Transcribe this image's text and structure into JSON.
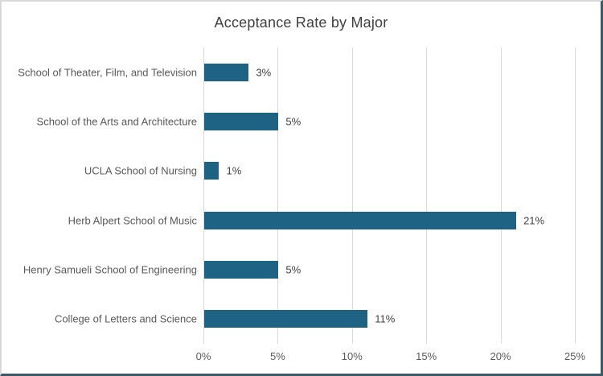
{
  "chart_data": {
    "type": "bar",
    "orientation": "horizontal",
    "title": "Acceptance Rate by Major",
    "categories": [
      "School of Theater, Film, and Television",
      "School of the Arts and Architecture",
      "UCLA School of Nursing",
      "Herb Alpert School of Music",
      "Henry Samueli School of Engineering",
      "College of Letters and Science"
    ],
    "values": [
      3,
      5,
      1,
      21,
      5,
      11
    ],
    "data_labels": [
      "3%",
      "5%",
      "1%",
      "21%",
      "5%",
      "11%"
    ],
    "xlabel": "",
    "ylabel": "",
    "xlim": [
      0,
      25
    ],
    "x_tick_values": [
      0,
      5,
      10,
      15,
      20,
      25
    ],
    "x_tick_labels": [
      "0%",
      "5%",
      "10%",
      "15%",
      "20%",
      "25%"
    ],
    "grid": true,
    "legend": false,
    "colors": {
      "bar": "#1F6384",
      "gridline": "#D9D9D9",
      "title_text": "#404040",
      "axis_text": "#595959",
      "data_label_text": "#404040"
    }
  }
}
